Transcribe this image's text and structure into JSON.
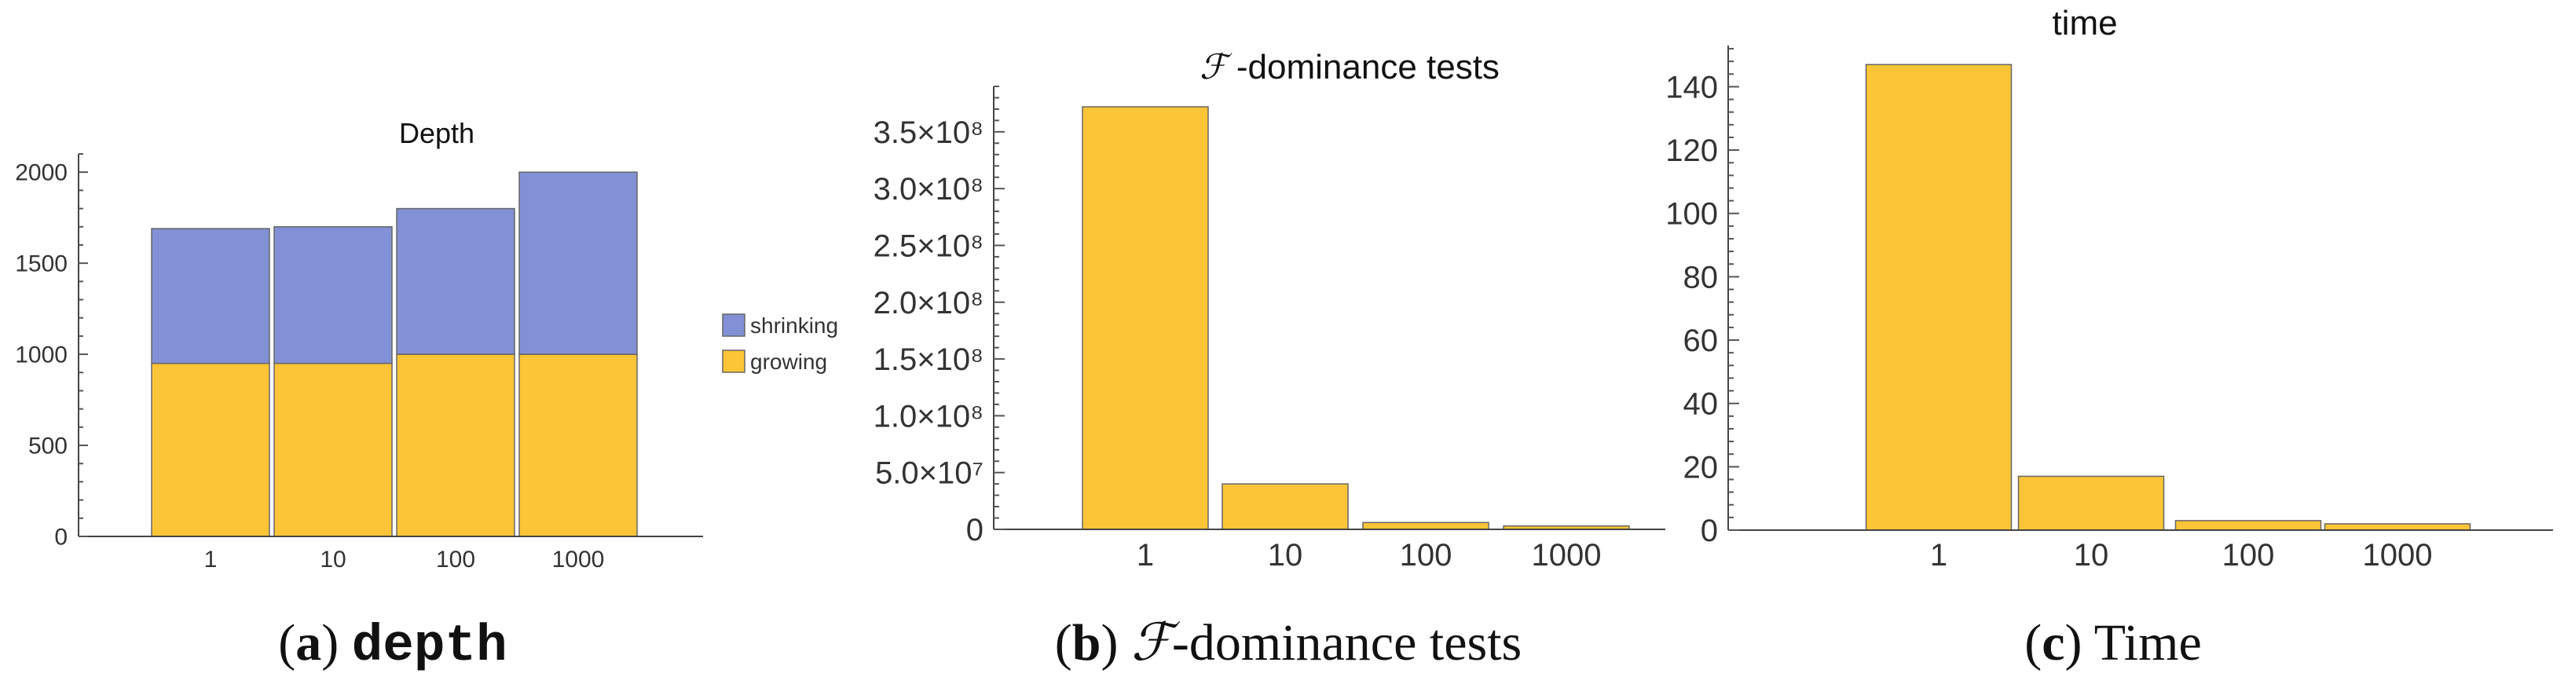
{
  "colors": {
    "growing": "#fcc537",
    "shrinking": "#8290d6"
  },
  "chart_data": [
    {
      "type": "bar",
      "stacked": true,
      "title": "Depth",
      "categories": [
        "1",
        "10",
        "100",
        "1000"
      ],
      "series": [
        {
          "name": "growing",
          "values": [
            950,
            950,
            1000,
            1000
          ]
        },
        {
          "name": "shrinking",
          "values": [
            740,
            750,
            800,
            1000
          ]
        }
      ],
      "ylim": [
        0,
        2100
      ],
      "yticks": [
        "0",
        "500",
        "1000",
        "1500",
        "2000"
      ],
      "legend_placement": "right",
      "caption": {
        "label": "a",
        "text": "depth"
      }
    },
    {
      "type": "bar",
      "title_script": "ℱ",
      "title_rest": " -dominance tests",
      "categories": [
        "1",
        "10",
        "100",
        "1000"
      ],
      "values": [
        372000000,
        40000000,
        6000000,
        3000000
      ],
      "ylim": [
        0,
        390000000
      ],
      "yticks": [
        "0",
        "5.0×10⁷",
        "1.0×10⁸",
        "1.5×10⁸",
        "2.0×10⁸",
        "2.5×10⁸",
        "3.0×10⁸",
        "3.5×10⁸"
      ],
      "caption": {
        "label": "b",
        "script": "ℱ",
        "text": "-dominance tests"
      }
    },
    {
      "type": "bar",
      "title": "time",
      "categories": [
        "1",
        "10",
        "100",
        "1000"
      ],
      "values": [
        147,
        17,
        3,
        2
      ],
      "ylim": [
        0,
        153
      ],
      "yticks": [
        "0",
        "20",
        "40",
        "60",
        "80",
        "100",
        "120",
        "140"
      ],
      "caption": {
        "label": "c",
        "text": "Time"
      }
    }
  ]
}
